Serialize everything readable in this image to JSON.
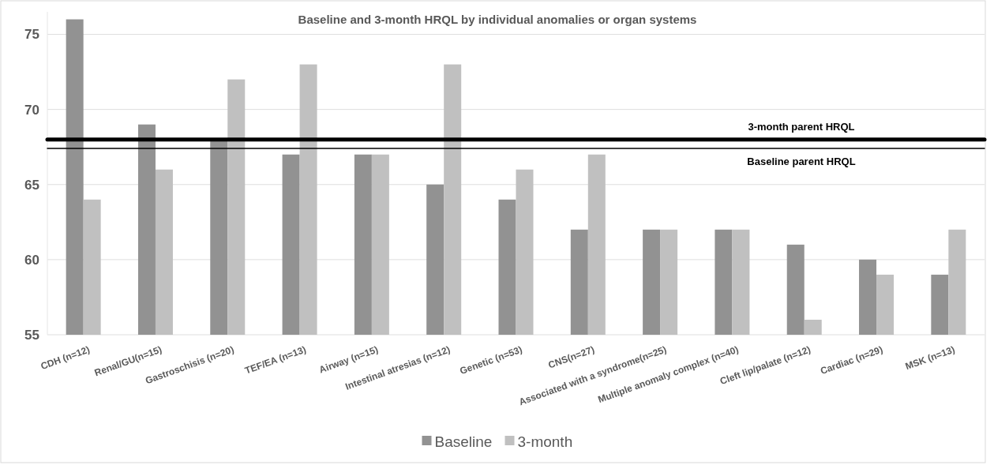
{
  "chart_data": {
    "type": "bar",
    "title": "Baseline and 3-month HRQL by individual anomalies or organ systems",
    "categories": [
      "CDH (n=12)",
      "Renal/GU(n=15)",
      "Gastroschisis (n=20)",
      "TEF/EA (n=13)",
      "Airway (n=15)",
      "Intestinal atresias (n=12)",
      "Genetic (n=53)",
      "CNS(n=27)",
      "Associated with a syndrome(n=25)",
      "Multiple anomaly complex (n=40)",
      "Cleft lip/palate (n=12)",
      "Cardiac (n=29)",
      "MSK (n=13)"
    ],
    "series": [
      {
        "name": "Baseline",
        "color": "#929292",
        "values": [
          76,
          69,
          68,
          67,
          67,
          65,
          64,
          62,
          62,
          62,
          61,
          60,
          59
        ]
      },
      {
        "name": "3-month",
        "color": "#c0c0c0",
        "values": [
          64,
          66,
          72,
          73,
          67,
          73,
          66,
          67,
          62,
          62,
          56,
          59,
          62
        ]
      }
    ],
    "ylim": [
      55,
      76.5
    ],
    "yticks": [
      55,
      60,
      65,
      70,
      75
    ],
    "grid": "y",
    "legend": "bottom",
    "ref_lines": [
      {
        "axis": "y",
        "value": 68,
        "label": "3-month parent HRQL",
        "color": "#000000"
      },
      {
        "axis": "y",
        "value": 67.4,
        "label": "Baseline parent HRQL",
        "color": "#000000"
      }
    ]
  }
}
